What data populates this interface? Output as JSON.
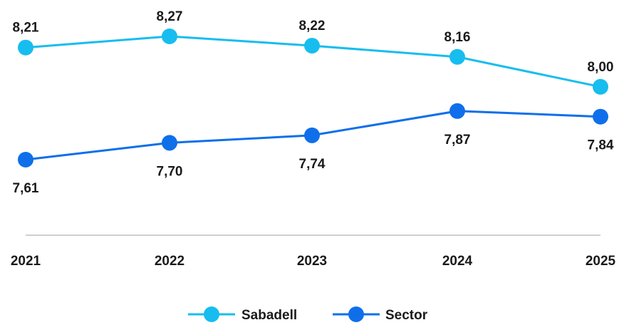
{
  "chart_data": {
    "type": "line",
    "title": "",
    "xlabel": "",
    "ylabel": "",
    "categories": [
      "2021",
      "2022",
      "2023",
      "2024",
      "2025"
    ],
    "series": [
      {
        "name": "Sabadell",
        "values": [
          8.21,
          8.27,
          8.22,
          8.16,
          8.0
        ],
        "labels": [
          "8,21",
          "8,27",
          "8,22",
          "8,16",
          "8,00"
        ],
        "label_position": "above",
        "color": "#17BDEE"
      },
      {
        "name": "Sector",
        "values": [
          7.61,
          7.7,
          7.74,
          7.87,
          7.84
        ],
        "labels": [
          "7,61",
          "7,70",
          "7,74",
          "7,87",
          "7,84"
        ],
        "label_position": "below",
        "color": "#0F6FEA"
      }
    ],
    "grid": false,
    "legend": "bottom-center",
    "axis_color": "#bfbfbf"
  }
}
